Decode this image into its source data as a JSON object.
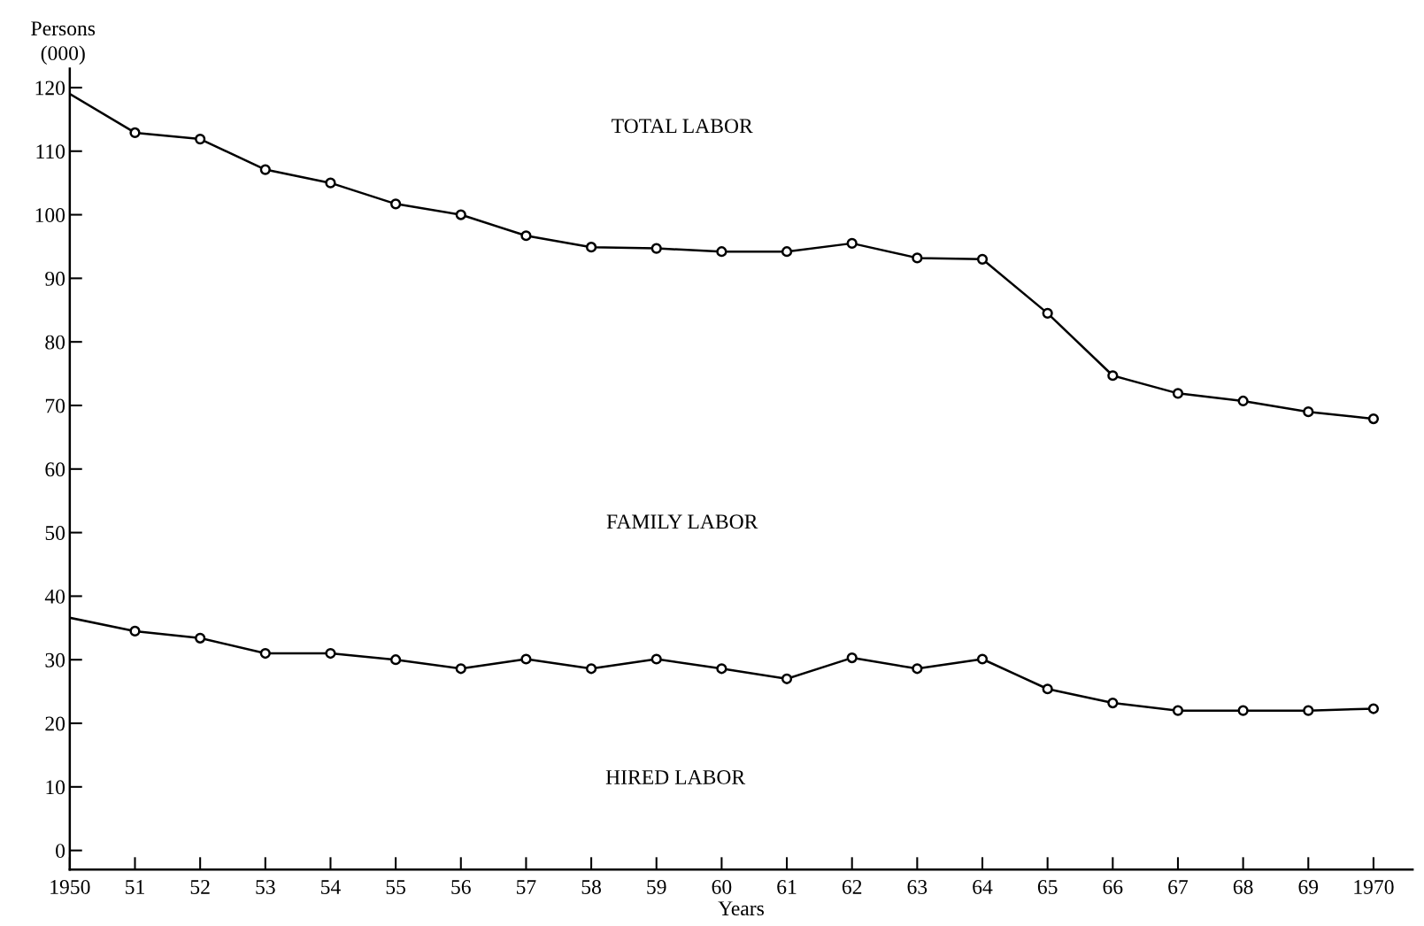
{
  "chart_data": {
    "type": "line",
    "xlabel": "Years",
    "ylabel": "Persons\n(000)",
    "x": [
      1950,
      1951,
      1952,
      1953,
      1954,
      1955,
      1956,
      1957,
      1958,
      1959,
      1960,
      1961,
      1962,
      1963,
      1964,
      1965,
      1966,
      1967,
      1968,
      1969,
      1970
    ],
    "series": [
      {
        "color": "#000000",
        "values": [
          119.0,
          112.9,
          111.9,
          107.1,
          105.0,
          101.7,
          100.0,
          96.7,
          94.9,
          94.7,
          94.2,
          94.2,
          95.5,
          93.2,
          93.0,
          84.5,
          74.7,
          71.9,
          70.7,
          69.0,
          67.9
        ]
      },
      {
        "color": "#000000",
        "values": [
          36.6,
          34.5,
          33.4,
          31.0,
          31.0,
          30.0,
          28.6,
          30.1,
          28.6,
          30.1,
          28.6,
          27.0,
          30.3,
          28.6,
          30.1,
          25.4,
          23.2,
          22.0,
          22.0,
          22.0,
          22.3
        ]
      }
    ],
    "xlim": [
      1950,
      1970.6
    ],
    "xticks": [
      1950,
      {
        "value": 1951,
        "label": "51"
      },
      {
        "value": 1952,
        "label": "52"
      },
      {
        "value": 1953,
        "label": "53"
      },
      {
        "value": 1954,
        "label": "54"
      },
      {
        "value": 1955,
        "label": "55"
      },
      {
        "value": 1956,
        "label": "56"
      },
      {
        "value": 1957,
        "label": "57"
      },
      {
        "value": 1958,
        "label": "58"
      },
      {
        "value": 1959,
        "label": "59"
      },
      {
        "value": 1960,
        "label": "60"
      },
      {
        "value": 1961,
        "label": "61"
      },
      {
        "value": 1962,
        "label": "62"
      },
      {
        "value": 1963,
        "label": "63"
      },
      {
        "value": 1964,
        "label": "64"
      },
      {
        "value": 1965,
        "label": "65"
      },
      {
        "value": 1966,
        "label": "66"
      },
      {
        "value": 1967,
        "label": "67"
      },
      {
        "value": 1968,
        "label": "68"
      },
      {
        "value": 1969,
        "label": "69"
      },
      1970
    ],
    "ylim": [
      -3,
      123
    ],
    "yticks": [
      0,
      10,
      20,
      30,
      40,
      50,
      60,
      70,
      80,
      90,
      100,
      110,
      120
    ],
    "annotations": [
      "TOTAL LABOR",
      "FAMILY LABOR",
      "HIRED LABOR"
    ],
    "marker": "circle",
    "line_style": "solid",
    "grid": false
  }
}
